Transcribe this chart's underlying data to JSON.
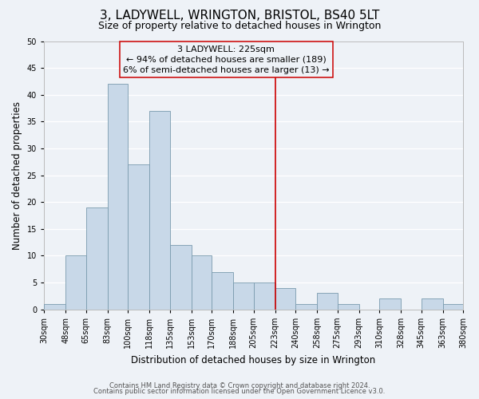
{
  "title": "3, LADYWELL, WRINGTON, BRISTOL, BS40 5LT",
  "subtitle": "Size of property relative to detached houses in Wrington",
  "xlabel": "Distribution of detached houses by size in Wrington",
  "ylabel": "Number of detached properties",
  "bin_edges": [
    30,
    48,
    65,
    83,
    100,
    118,
    135,
    153,
    170,
    188,
    205,
    223,
    240,
    258,
    275,
    293,
    310,
    328,
    345,
    363,
    380
  ],
  "counts": [
    1,
    10,
    19,
    42,
    27,
    37,
    12,
    10,
    7,
    5,
    5,
    4,
    1,
    3,
    1,
    0,
    2,
    0,
    2,
    1
  ],
  "bar_color": "#c8d8e8",
  "bar_edge_color": "#7a9bae",
  "reference_line_x": 223,
  "reference_line_color": "#cc0000",
  "ylim": [
    0,
    50
  ],
  "yticks": [
    0,
    5,
    10,
    15,
    20,
    25,
    30,
    35,
    40,
    45,
    50
  ],
  "annotation_title": "3 LADYWELL: 225sqm",
  "annotation_line1": "← 94% of detached houses are smaller (189)",
  "annotation_line2": "6% of semi-detached houses are larger (13) →",
  "footer1": "Contains HM Land Registry data © Crown copyright and database right 2024.",
  "footer2": "Contains public sector information licensed under the Open Government Licence v3.0.",
  "background_color": "#eef2f7",
  "grid_color": "#ffffff",
  "title_fontsize": 11,
  "subtitle_fontsize": 9,
  "tick_label_fontsize": 7,
  "axis_label_fontsize": 8.5,
  "footer_fontsize": 6,
  "annot_fontsize": 8
}
